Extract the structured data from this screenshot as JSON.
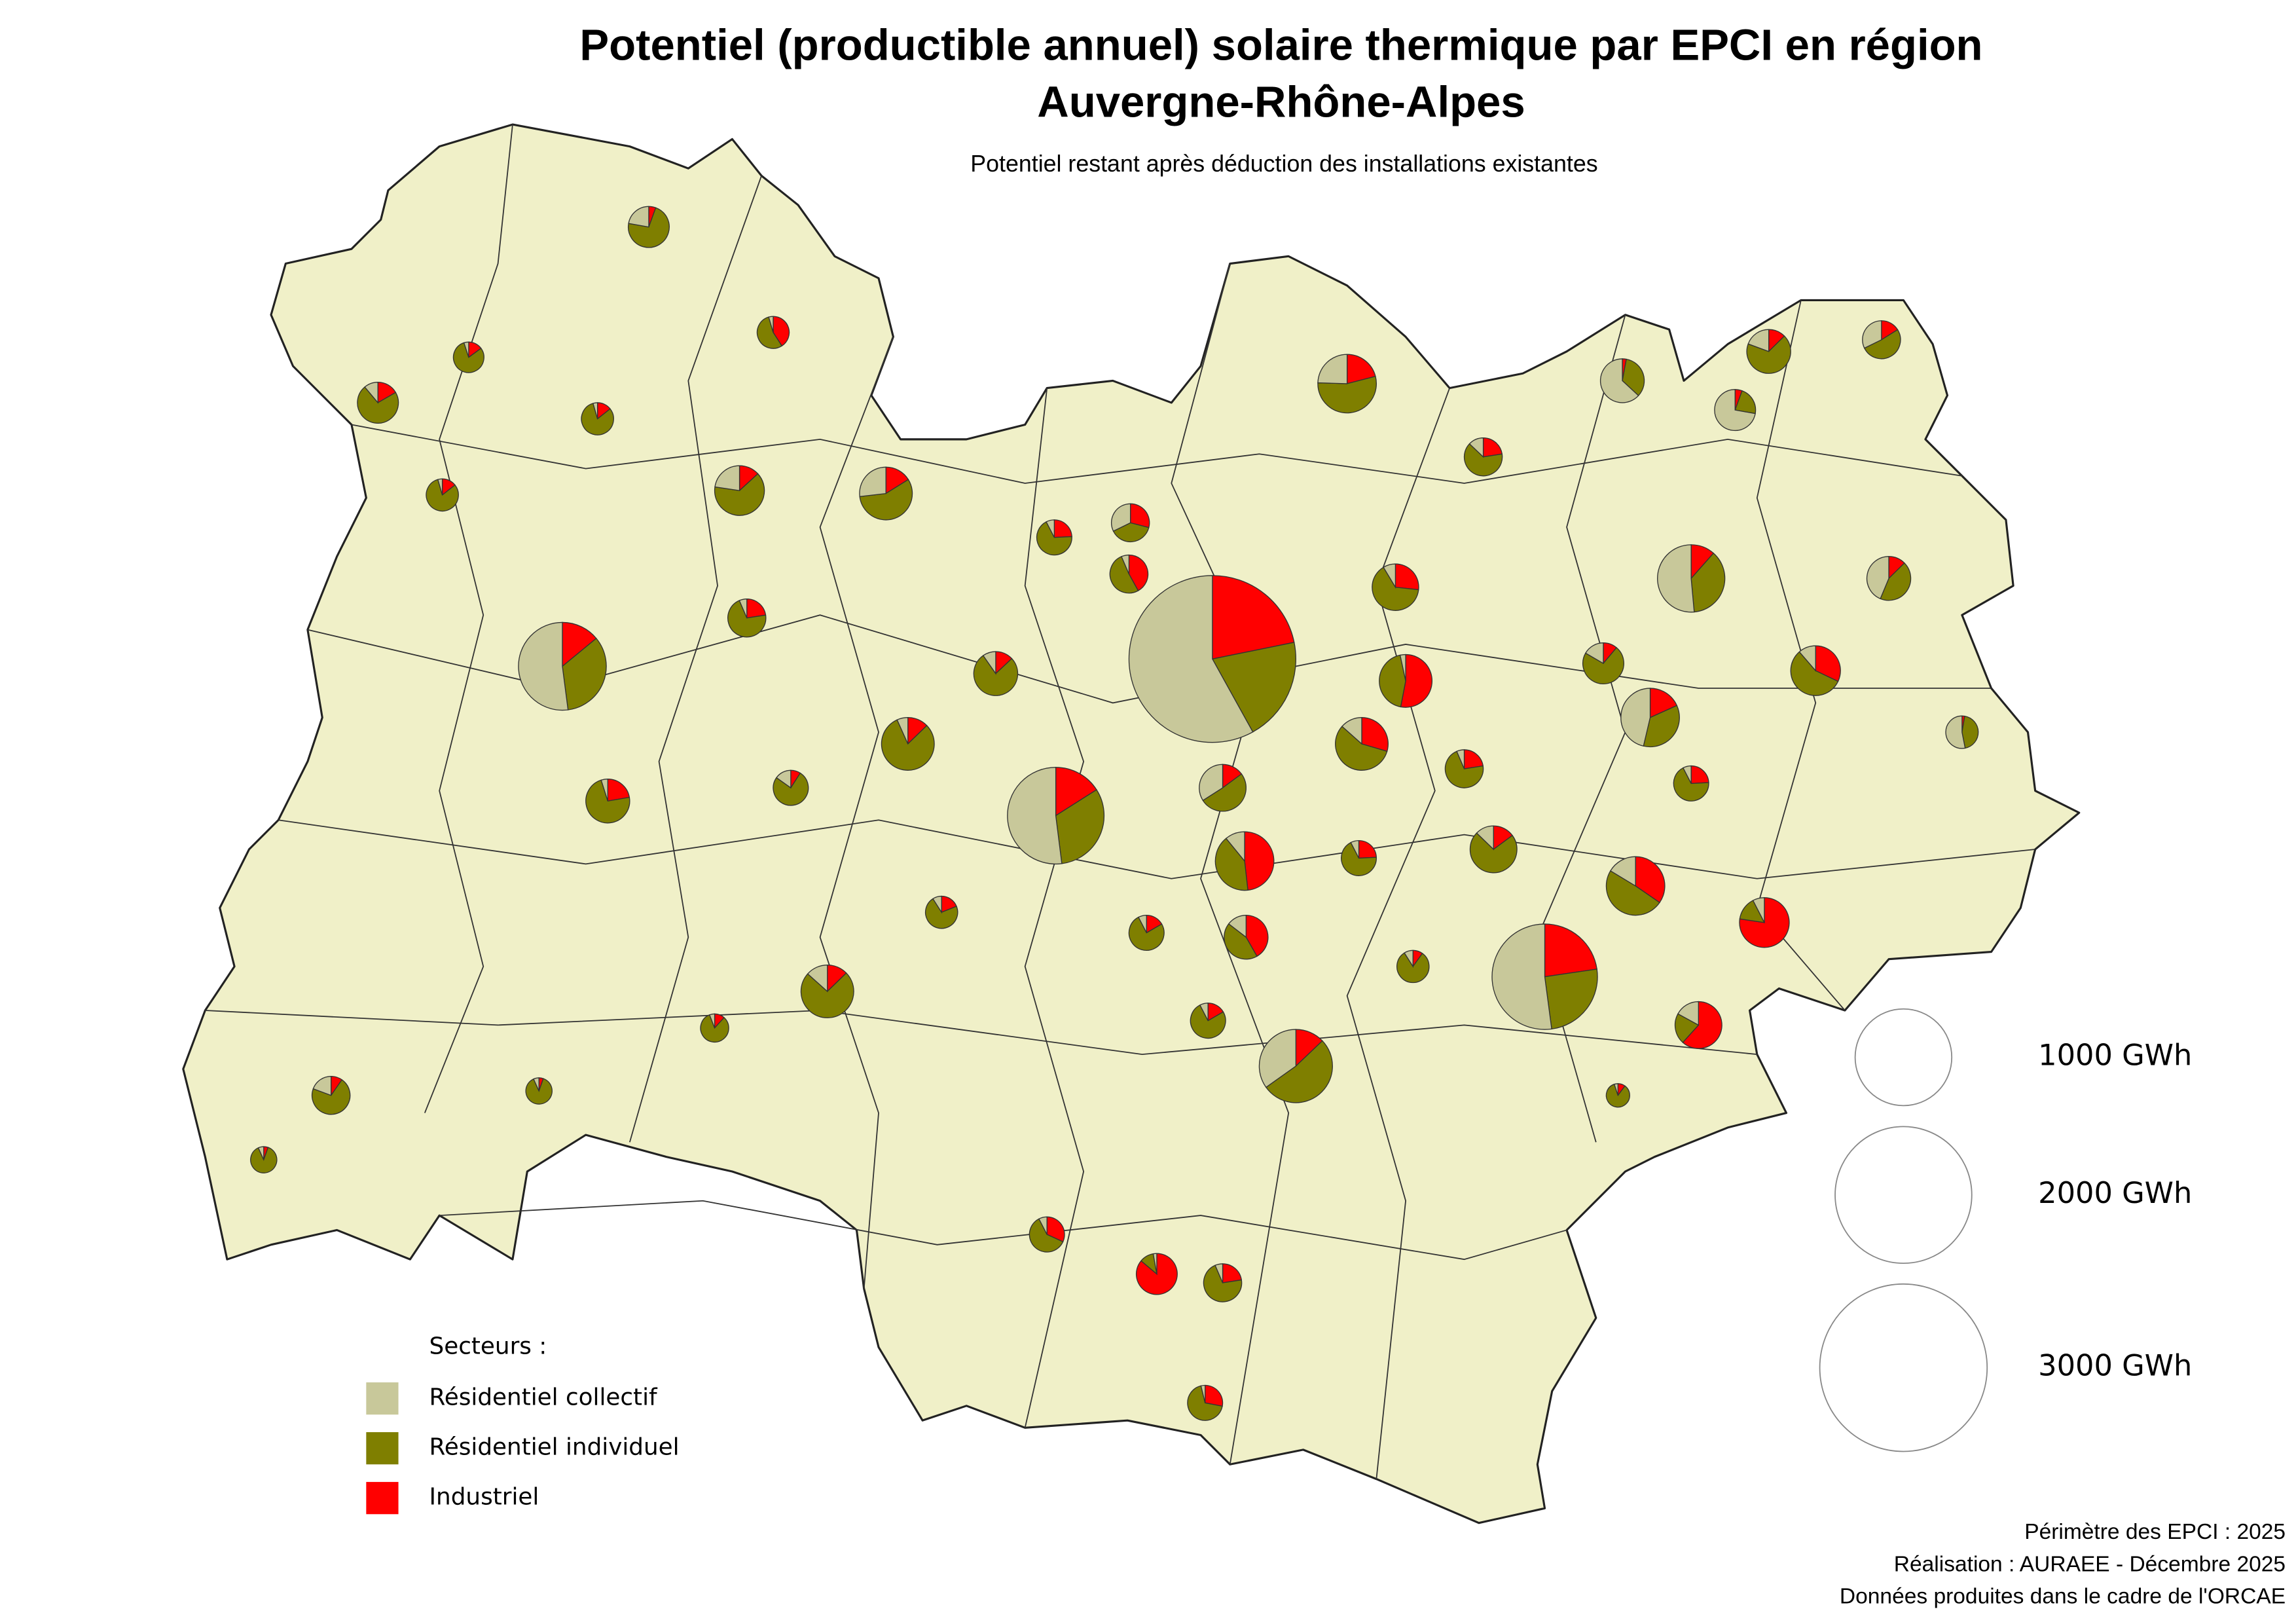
{
  "title": [
    "Potentiel (productible annuel) solaire thermique par EPCI en région",
    "Auvergne-Rhône-Alpes"
  ],
  "subtitle": "Potentiel restant après déduction des installations existantes",
  "legend": {
    "title": "Secteurs :",
    "items": [
      {
        "name": "Résidentiel collectif",
        "color": "#c8c89a"
      },
      {
        "name": "Résidentiel individuel",
        "color": "#7f7f00"
      },
      {
        "name": "Industriel",
        "color": "#ff0000"
      }
    ]
  },
  "size_legend": [
    {
      "value": 1000,
      "label": "1000 GWh"
    },
    {
      "value": 2000,
      "label": "2000 GWh"
    },
    {
      "value": 3000,
      "label": "3000 GWh"
    }
  ],
  "pies": [
    [
      1730,
      600,
      650
    ],
    [
      620,
      300,
      270
    ],
    [
      430,
      280,
      116
    ],
    [
      520,
      320,
      160
    ],
    [
      250,
      180,
      56
    ],
    [
      170,
      130,
      67
    ],
    [
      200,
      300,
      74
    ],
    [
      90,
      200,
      77
    ],
    [
      80,
      170,
      48
    ],
    [
      20,
      240,
      38
    ],
    [
      60,
      180,
      127
    ],
    [
      20,
      40,
      205
    ],
    [
      10,
      130,
      158
    ],
    [
      60,
      170,
      35
    ],
    [
      30,
      150,
      85
    ],
    [
      90,
      90,
      26
    ],
    [
      40,
      150,
      177
    ],
    [
      40,
      220,
      38
    ],
    [
      40,
      170,
      88
    ],
    [
      20,
      160,
      27
    ],
    [
      30,
      170,
      35
    ],
    [
      40,
      50,
      145
    ],
    [
      40,
      140,
      26
    ],
    [
      130,
      70,
      6
    ],
    [
      130,
      40,
      10
    ],
    [
      20,
      130,
      30
    ],
    [
      10,
      150,
      46
    ],
    [
      80,
      120,
      35
    ],
    [
      5,
      20,
      155
    ],
    [
      30,
      90,
      86
    ],
    [
      20,
      100,
      12
    ],
    [
      40,
      130,
      10
    ],
    [
      10,
      100,
      22
    ],
    [
      20,
      100,
      35
    ],
    [
      50,
      80,
      25
    ],
    [
      60,
      50,
      3
    ],
    [
      20,
      150,
      62
    ],
    [
      30,
      130,
      20
    ],
    [
      10,
      110,
      35
    ],
    [
      10,
      110,
      35
    ],
    [
      5,
      90,
      16
    ],
    [
      5,
      90,
      16
    ],
    [
      5,
      80,
      15
    ],
    [
      5,
      60,
      45
    ],
    [
      50,
      60,
      45
    ],
    [
      10,
      80,
      65
    ],
    [
      10,
      90,
      32
    ],
    [
      10,
      110,
      35
    ],
    [
      10,
      80,
      42
    ],
    [
      5,
      90,
      37
    ],
    [
      30,
      110,
      15
    ],
    [
      5,
      65,
      4
    ],
    [
      5,
      65,
      4
    ],
    [
      5,
      70,
      10
    ],
    [
      10,
      90,
      11
    ],
    [
      3,
      50,
      6
    ],
    [
      10,
      80,
      21
    ],
    [
      10,
      100,
      22
    ],
    [
      10,
      90,
      32
    ],
    [
      10,
      90,
      32
    ]
  ],
  "credits": [
    "Périmètre des EPCI : 2025",
    "Réalisation : AURAEE - Décembre 2025",
    "Données produites dans le cadre de l'ORCAE"
  ]
}
